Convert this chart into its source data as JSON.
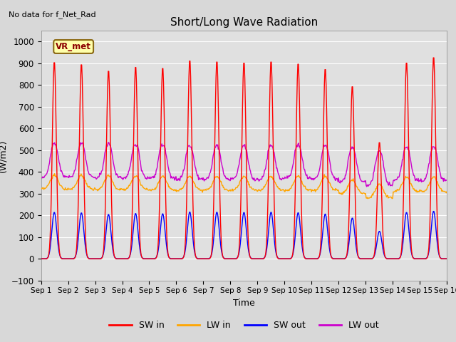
{
  "title": "Short/Long Wave Radiation",
  "xlabel": "Time",
  "ylabel": "(W/m2)",
  "ylim": [
    -100,
    1050
  ],
  "xlim": [
    0,
    15
  ],
  "annotation": "No data for f_Net_Rad",
  "legend_label": "VR_met",
  "x_tick_labels": [
    "Sep 1",
    "Sep 2",
    "Sep 3",
    "Sep 4",
    "Sep 5",
    "Sep 6",
    "Sep 7",
    "Sep 8",
    "Sep 9",
    "Sep 10",
    "Sep 11",
    "Sep 12",
    "Sep 13",
    "Sep 14",
    "Sep 15",
    "Sep 16"
  ],
  "series": {
    "SW_in": {
      "color": "#ff0000",
      "label": "SW in"
    },
    "LW_in": {
      "color": "#ffa500",
      "label": "LW in"
    },
    "SW_out": {
      "color": "#0000ff",
      "label": "SW out"
    },
    "LW_out": {
      "color": "#cc00cc",
      "label": "LW out"
    }
  },
  "fig_bg_color": "#d8d8d8",
  "plot_bg_color": "#e0e0e0",
  "grid_color": "#ffffff",
  "SW_in_peaks": [
    912,
    902,
    872,
    890,
    885,
    920,
    915,
    910,
    915,
    905,
    880,
    800,
    540,
    910,
    935
  ],
  "SW_in_sigma": 1.8,
  "SW_out_ratio": 0.235,
  "SW_out_sigma": 2.2,
  "LW_in_base": [
    320,
    320,
    318,
    318,
    315,
    315,
    315,
    315,
    315,
    315,
    315,
    300,
    280,
    310,
    310
  ],
  "LW_in_peak_add": 65,
  "LW_in_sigma": 3.5,
  "LW_out_base": [
    375,
    375,
    375,
    370,
    370,
    365,
    365,
    365,
    365,
    370,
    365,
    355,
    340,
    360,
    360
  ],
  "LW_out_peak_add": 185,
  "LW_out_sigma": 3.2,
  "LW_out_dip": 30,
  "hours_per_day": 48,
  "n_days": 15
}
